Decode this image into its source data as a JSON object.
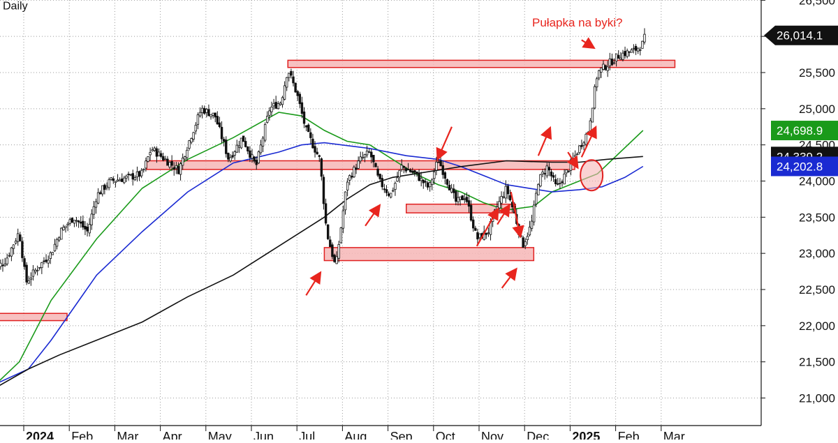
{
  "chart_data": {
    "type": "candlestick",
    "header": "Daily",
    "ylim": [
      20700,
      26500
    ],
    "grid": true,
    "y_ticks": [
      "21,000",
      "21,500",
      "22,000",
      "22,500",
      "23,000",
      "23,500",
      "24,000",
      "24,500",
      "25,000",
      "25,500",
      "26,000",
      "26,500"
    ],
    "y_tick_values": [
      21000,
      21500,
      22000,
      22500,
      23000,
      23500,
      24000,
      24500,
      25000,
      25500,
      26000,
      26500
    ],
    "x_ticks": [
      {
        "label": "2024",
        "year": true,
        "month": 0
      },
      {
        "label": "Feb",
        "year": false,
        "month": 1
      },
      {
        "label": "Mar",
        "year": false,
        "month": 2
      },
      {
        "label": "Apr",
        "year": false,
        "month": 3
      },
      {
        "label": "May",
        "year": false,
        "month": 4
      },
      {
        "label": "Jun",
        "year": false,
        "month": 5
      },
      {
        "label": "Jul",
        "year": false,
        "month": 6
      },
      {
        "label": "Aug",
        "year": false,
        "month": 7
      },
      {
        "label": "Sep",
        "year": false,
        "month": 8
      },
      {
        "label": "Oct",
        "year": false,
        "month": 9
      },
      {
        "label": "Nov",
        "year": false,
        "month": 10
      },
      {
        "label": "Dec",
        "year": false,
        "month": 11
      },
      {
        "label": "2025",
        "year": true,
        "month": 12
      },
      {
        "label": "Feb",
        "year": false,
        "month": 13
      },
      {
        "label": "Mar",
        "year": false,
        "month": 14
      }
    ],
    "price_path": [
      [
        -0.3,
        22750
      ],
      [
        0.0,
        22900
      ],
      [
        0.3,
        23300
      ],
      [
        0.45,
        22600
      ],
      [
        0.7,
        22800
      ],
      [
        1.0,
        23000
      ],
      [
        1.2,
        23300
      ],
      [
        1.5,
        23500
      ],
      [
        1.8,
        23300
      ],
      [
        2.0,
        23800
      ],
      [
        2.3,
        24000
      ],
      [
        2.7,
        24050
      ],
      [
        3.0,
        24100
      ],
      [
        3.2,
        24450
      ],
      [
        3.5,
        24300
      ],
      [
        3.8,
        24150
      ],
      [
        4.0,
        24500
      ],
      [
        4.3,
        25000
      ],
      [
        4.6,
        24900
      ],
      [
        4.9,
        24300
      ],
      [
        5.2,
        24600
      ],
      [
        5.5,
        24200
      ],
      [
        5.8,
        25000
      ],
      [
        6.05,
        25100
      ],
      [
        6.2,
        25550
      ],
      [
        6.4,
        25200
      ],
      [
        6.6,
        24700
      ],
      [
        6.9,
        24300
      ],
      [
        7.05,
        23300
      ],
      [
        7.25,
        22800
      ],
      [
        7.5,
        24000
      ],
      [
        7.8,
        24300
      ],
      [
        8.0,
        24400
      ],
      [
        8.2,
        24000
      ],
      [
        8.45,
        23800
      ],
      [
        8.7,
        24200
      ],
      [
        9.0,
        24100
      ],
      [
        9.3,
        23900
      ],
      [
        9.5,
        24300
      ],
      [
        9.7,
        24000
      ],
      [
        9.9,
        23700
      ],
      [
        10.1,
        23800
      ],
      [
        10.35,
        23200
      ],
      [
        10.6,
        23300
      ],
      [
        10.8,
        23650
      ],
      [
        11.0,
        23900
      ],
      [
        11.2,
        23500
      ],
      [
        11.35,
        23100
      ],
      [
        11.55,
        23400
      ],
      [
        11.7,
        24000
      ],
      [
        11.9,
        24200
      ],
      [
        12.1,
        23900
      ],
      [
        12.3,
        24100
      ],
      [
        12.55,
        24400
      ],
      [
        12.8,
        24700
      ],
      [
        13.0,
        25500
      ],
      [
        13.3,
        25650
      ],
      [
        13.5,
        25750
      ],
      [
        13.8,
        25800
      ],
      [
        14.0,
        25900
      ],
      [
        14.05,
        26014
      ]
    ],
    "series": [
      {
        "color": "#1a9a1a",
        "values": [
          [
            -0.2,
            21200
          ],
          [
            0.3,
            21500
          ],
          [
            1,
            22350
          ],
          [
            2,
            23200
          ],
          [
            3,
            23900
          ],
          [
            4,
            24300
          ],
          [
            5,
            24600
          ],
          [
            6,
            24950
          ],
          [
            6.5,
            24900
          ],
          [
            7,
            24700
          ],
          [
            7.5,
            24550
          ],
          [
            8,
            24500
          ],
          [
            8.5,
            24300
          ],
          [
            9,
            24100
          ],
          [
            9.5,
            23950
          ],
          [
            10,
            23850
          ],
          [
            10.5,
            23700
          ],
          [
            11,
            23600
          ],
          [
            11.6,
            23650
          ],
          [
            12,
            23850
          ],
          [
            12.6,
            24000
          ],
          [
            13,
            24100
          ],
          [
            13.5,
            24400
          ],
          [
            14.0,
            24698.9
          ]
        ]
      },
      {
        "color": "#1a2ad2",
        "values": [
          [
            -0.2,
            21200
          ],
          [
            0.5,
            21400
          ],
          [
            1,
            21800
          ],
          [
            2,
            22700
          ],
          [
            3,
            23300
          ],
          [
            4,
            23850
          ],
          [
            5,
            24250
          ],
          [
            6,
            24400
          ],
          [
            6.5,
            24500
          ],
          [
            7,
            24530
          ],
          [
            8,
            24450
          ],
          [
            8.8,
            24350
          ],
          [
            9.5,
            24300
          ],
          [
            10,
            24200
          ],
          [
            10.6,
            24050
          ],
          [
            11,
            23950
          ],
          [
            11.5,
            23900
          ],
          [
            12,
            23850
          ],
          [
            12.6,
            23880
          ],
          [
            13.1,
            23920
          ],
          [
            13.6,
            24050
          ],
          [
            14.0,
            24202.8
          ]
        ]
      },
      {
        "color": "#111111",
        "values": [
          [
            -0.2,
            21150
          ],
          [
            0.5,
            21400
          ],
          [
            1.2,
            21600
          ],
          [
            2,
            21800
          ],
          [
            3,
            22050
          ],
          [
            4,
            22400
          ],
          [
            5,
            22700
          ],
          [
            6,
            23100
          ],
          [
            7,
            23500
          ],
          [
            7.5,
            23750
          ],
          [
            8,
            23950
          ],
          [
            8.5,
            24050
          ],
          [
            9,
            24100
          ],
          [
            10,
            24200
          ],
          [
            11,
            24280
          ],
          [
            12,
            24260
          ],
          [
            12.6,
            24260
          ],
          [
            13.2,
            24300
          ],
          [
            14.0,
            24339.2
          ]
        ]
      }
    ],
    "zones": [
      {
        "x0": 6.2,
        "x1": 14.7,
        "y0": 25570,
        "y1": 25670
      },
      {
        "x0": 3.1,
        "x1": 12.5,
        "y0": 24160,
        "y1": 24280
      },
      {
        "x0": 8.8,
        "x1": 11.2,
        "y0": 23560,
        "y1": 23680
      },
      {
        "x0": 7.0,
        "x1": 11.6,
        "y0": 22900,
        "y1": 23080
      },
      {
        "x0": -0.5,
        "x1": 1.35,
        "y0": 22070,
        "y1": 22170
      },
      {
        "x0": -0.5,
        "x1": -0.2,
        "y0": 20930,
        "y1": 21060
      }
    ],
    "arrows": [
      {
        "x0": 6.6,
        "y0": 22420,
        "x1": 6.9,
        "y1": 22720
      },
      {
        "x0": 7.9,
        "y0": 23380,
        "x1": 8.2,
        "y1": 23650
      },
      {
        "x0": 9.8,
        "y0": 24750,
        "x1": 9.5,
        "y1": 24320
      },
      {
        "x0": 10.35,
        "y0": 23100,
        "x1": 10.8,
        "y1": 23600
      },
      {
        "x0": 10.8,
        "y0": 23400,
        "x1": 11.05,
        "y1": 23650
      },
      {
        "x0": 11.1,
        "y0": 23850,
        "x1": 11.3,
        "y1": 23250
      },
      {
        "x0": 10.9,
        "y0": 22520,
        "x1": 11.2,
        "y1": 22770
      },
      {
        "x0": 11.7,
        "y0": 24350,
        "x1": 11.95,
        "y1": 24720
      },
      {
        "x0": 12.35,
        "y0": 24400,
        "x1": 12.55,
        "y1": 24200
      },
      {
        "x0": 12.65,
        "y0": 24330,
        "x1": 12.95,
        "y1": 24730
      },
      {
        "x0": 12.65,
        "y0": 25950,
        "x1": 12.9,
        "y1": 25850
      }
    ],
    "circle": {
      "x": 12.87,
      "y": 24080
    },
    "annotation": "Pułapka na byki?",
    "last_price_label": "26,014.1",
    "last_price": 26014,
    "ma_labels": [
      {
        "text": "24,698.9",
        "value": 24698.9,
        "bg": "#1a9a1a"
      },
      {
        "text": "24,339.2",
        "value": 24339.2,
        "bg": "#111111"
      },
      {
        "text": "24,202.8",
        "value": 24202.8,
        "bg": "#1a2ad2"
      }
    ]
  }
}
